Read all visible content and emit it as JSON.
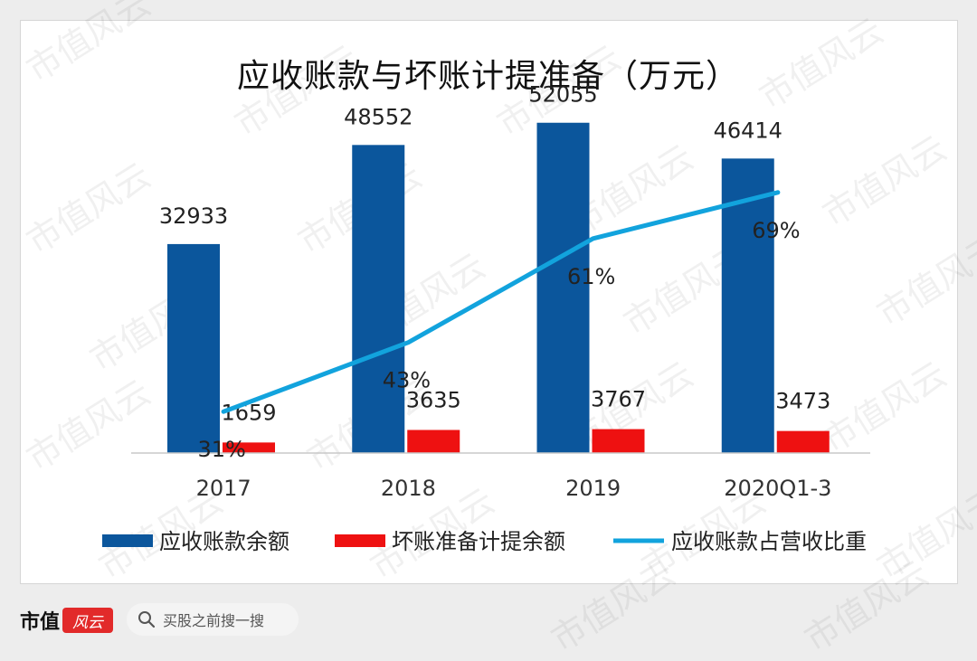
{
  "watermark_text": "市值风云",
  "chart_data": {
    "type": "bar",
    "title": "应收账款与坏账计提准备（万元）",
    "categories": [
      "2017",
      "2018",
      "2019",
      "2020Q1-3"
    ],
    "series": [
      {
        "name": "应收账款余额",
        "kind": "bar",
        "color": "#0b569c",
        "values": [
          32933,
          48552,
          52055,
          46414
        ],
        "labels": [
          "32933",
          "48552",
          "52055",
          "46414"
        ]
      },
      {
        "name": "坏账准备计提余额",
        "kind": "bar",
        "color": "#ee1111",
        "values": [
          1659,
          3635,
          3767,
          3473
        ],
        "labels": [
          "1659",
          "3635",
          "3767",
          "3473"
        ]
      },
      {
        "name": "应收账款占营收比重",
        "kind": "line",
        "color": "#12a3dd",
        "values": [
          31,
          43,
          61,
          69
        ],
        "labels": [
          "31%",
          "43%",
          "61%",
          "69%"
        ]
      }
    ],
    "ylim": [
      0,
      60000
    ],
    "y2lim": [
      0,
      100
    ],
    "legend": "bottom",
    "grid": false
  },
  "footer": {
    "logo_text": "市值",
    "logo_mark": "风云",
    "search_placeholder": "买股之前搜一搜"
  }
}
